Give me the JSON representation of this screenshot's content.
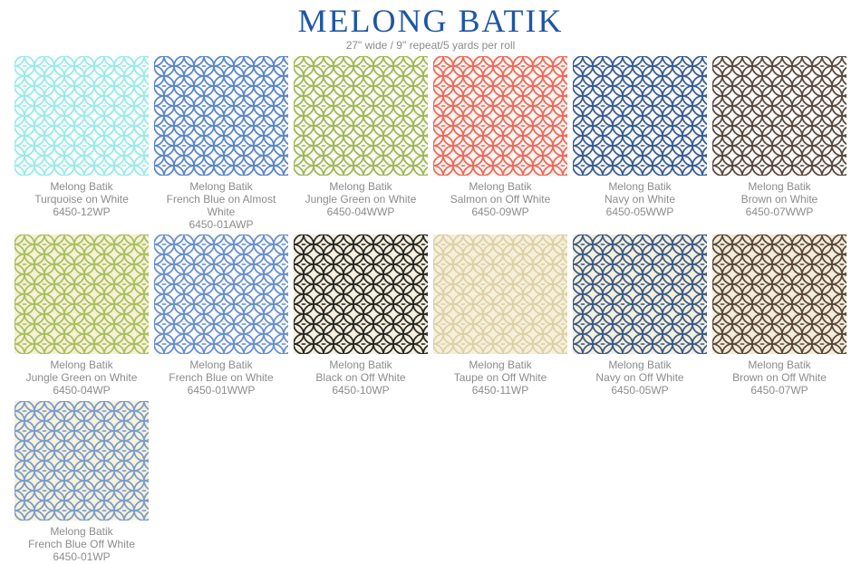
{
  "header": {
    "title": "MELONG BATIK",
    "subtitle": "27\" wide / 9\" repeat/5 yards per roll"
  },
  "swatches": [
    {
      "name": "Melong Batik",
      "color": "Turquoise on White",
      "sku": "6450-12WP",
      "ink": "#9fe8e8",
      "ground": "#f6fefe"
    },
    {
      "name": "Melong Batik",
      "color": "French Blue on Almost White",
      "sku": "6450-01AWP",
      "ink": "#5b86c8",
      "ground": "#fbfcfe"
    },
    {
      "name": "Melong Batik",
      "color": "Jungle Green on White",
      "sku": "6450-04WWP",
      "ink": "#9fb859",
      "ground": "#fbfcf5"
    },
    {
      "name": "Melong Batik",
      "color": "Salmon on Off White",
      "sku": "6450-09WP",
      "ink": "#ec6a5e",
      "ground": "#fdf4ee"
    },
    {
      "name": "Melong Batik",
      "color": "Navy on White",
      "sku": "6450-05WWP",
      "ink": "#3b5d92",
      "ground": "#f8f9fb"
    },
    {
      "name": "Melong Batik",
      "color": "Brown on White",
      "sku": "6450-07WWP",
      "ink": "#5a4a42",
      "ground": "#fbf9f7"
    },
    {
      "name": "Melong Batik",
      "color": "Jungle Green on White",
      "sku": "6450-04WP",
      "ink": "#a9bf62",
      "ground": "#f6f2d6"
    },
    {
      "name": "Melong Batik",
      "color": "French Blue on White",
      "sku": "6450-01WWP",
      "ink": "#6a90cc",
      "ground": "#fafbfd"
    },
    {
      "name": "Melong Batik",
      "color": "Black on Off White",
      "sku": "6450-10WP",
      "ink": "#2a2a26",
      "ground": "#f5f0df"
    },
    {
      "name": "Melong Batik",
      "color": "Taupe on Off White",
      "sku": "6450-11WP",
      "ink": "#dcd0a8",
      "ground": "#f6f0da"
    },
    {
      "name": "Melong Batik",
      "color": "Navy on Off White",
      "sku": "6450-05WP",
      "ink": "#3f5c86",
      "ground": "#f4f0df"
    },
    {
      "name": "Melong Batik",
      "color": "Brown on Off White",
      "sku": "6450-07WP",
      "ink": "#5b4a3c",
      "ground": "#f3ecd8"
    },
    {
      "name": "Melong Batik",
      "color": "French Blue Off White",
      "sku": "6450-01WP",
      "ink": "#7c9ccc",
      "ground": "#f6f2dc"
    }
  ]
}
